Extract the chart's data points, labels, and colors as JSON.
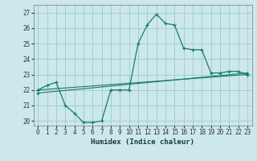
{
  "xlabel": "Humidex (Indice chaleur)",
  "bg_color": "#cce8ec",
  "grid_color": "#99cccc",
  "line_color": "#1a7a6e",
  "xlim": [
    -0.5,
    23.5
  ],
  "ylim": [
    19.7,
    27.5
  ],
  "xticks": [
    0,
    1,
    2,
    3,
    4,
    5,
    6,
    7,
    8,
    9,
    10,
    11,
    12,
    13,
    14,
    15,
    16,
    17,
    18,
    19,
    20,
    21,
    22,
    23
  ],
  "yticks": [
    20,
    21,
    22,
    23,
    24,
    25,
    26,
    27
  ],
  "line1_x": [
    0,
    1,
    2,
    3,
    4,
    5,
    6,
    7,
    8,
    9,
    10,
    11,
    12,
    13,
    14,
    15,
    16,
    17,
    18,
    19,
    20,
    21,
    22,
    23
  ],
  "line1_y": [
    22.0,
    22.3,
    22.5,
    21.0,
    20.5,
    19.9,
    19.9,
    20.0,
    22.0,
    22.0,
    22.0,
    25.0,
    26.2,
    26.9,
    26.3,
    26.2,
    24.7,
    24.6,
    24.6,
    23.1,
    23.1,
    23.2,
    23.2,
    23.0
  ],
  "line2_x": [
    0,
    23
  ],
  "line2_y": [
    22.0,
    23.0
  ],
  "line3_x": [
    0,
    23
  ],
  "line3_y": [
    21.8,
    23.1
  ],
  "xlabel_fontsize": 6.5,
  "tick_fontsize": 5.5
}
